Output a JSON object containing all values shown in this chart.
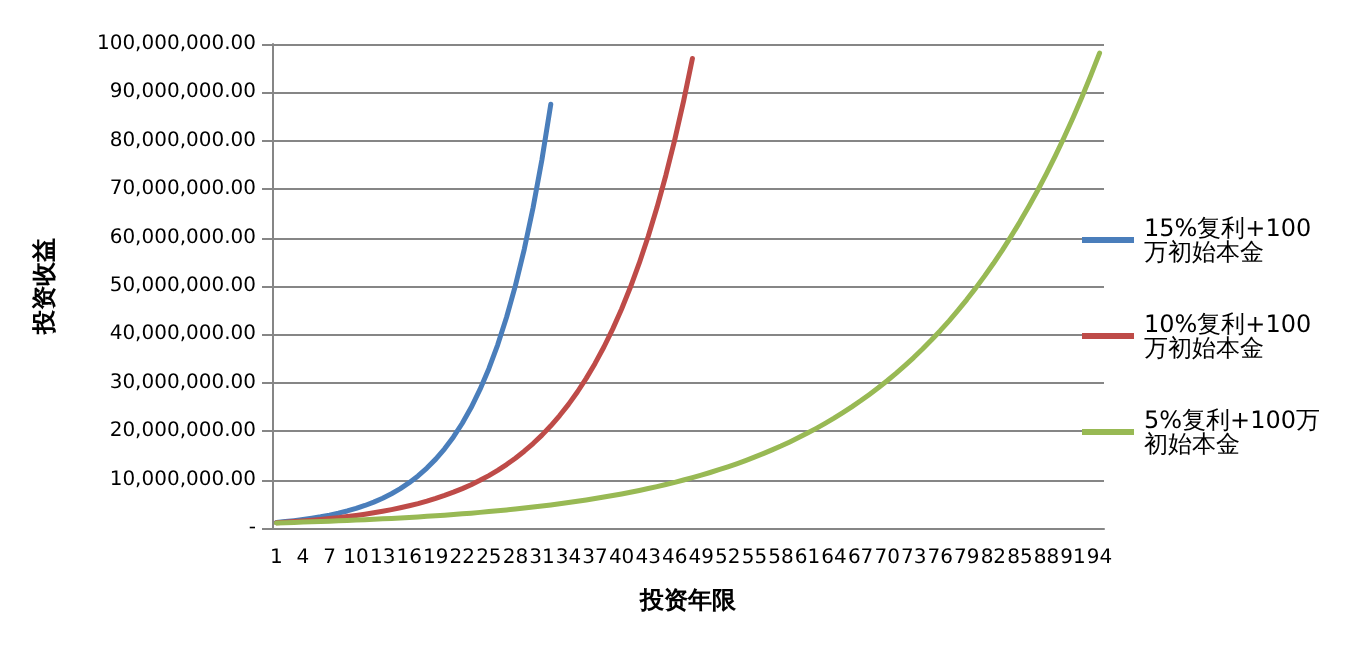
{
  "chart_data": {
    "type": "line",
    "xlabel": "投资年限",
    "ylabel": "投资收益",
    "categories": [
      "1",
      null,
      null,
      "4",
      null,
      null,
      "7",
      null,
      null,
      "10",
      null,
      null,
      "13",
      null,
      null,
      "16",
      null,
      null,
      "19",
      null,
      null,
      "22",
      null,
      null,
      "25",
      null,
      null,
      "28",
      null,
      null,
      "31",
      null,
      null,
      "34",
      null,
      null,
      "37",
      null,
      null,
      "40",
      null,
      null,
      "43",
      null,
      null,
      "46",
      null,
      null,
      "49",
      null,
      null,
      "52",
      null,
      null,
      "55",
      null,
      null,
      "58",
      null,
      null,
      "61",
      null,
      null,
      "64",
      null,
      null,
      "67",
      null,
      null,
      "70",
      null,
      null,
      "73",
      null,
      null,
      "76",
      null,
      null,
      "79",
      null,
      null,
      "82",
      null,
      null,
      "85",
      null,
      null,
      "88",
      null,
      null,
      "91",
      null,
      null,
      "94"
    ],
    "series": [
      {
        "name": "15%复利+100万初始本金",
        "color": "#4a7ebb",
        "values": [
          1150000,
          1320000,
          1520000,
          1750000,
          2010000,
          2310000,
          2660000,
          3060000,
          3520000,
          4050000,
          4650000,
          5350000,
          6150000,
          7080000,
          8140000,
          9360000,
          10760000,
          12380000,
          14230000,
          16370000,
          18820000,
          21640000,
          24890000,
          28630000,
          32920000,
          37860000,
          43540000,
          50070000,
          57580000,
          66210000,
          76140000,
          87570000,
          null,
          null,
          null,
          null,
          null,
          null,
          null,
          null,
          null,
          null,
          null,
          null,
          null,
          null,
          null,
          null,
          null,
          null,
          null,
          null,
          null,
          null,
          null,
          null,
          null,
          null,
          null,
          null,
          null,
          null,
          null,
          null,
          null,
          null,
          null,
          null,
          null,
          null,
          null,
          null,
          null,
          null,
          null,
          null,
          null,
          null,
          null,
          null,
          null,
          null,
          null,
          null,
          null,
          null,
          null,
          null,
          null,
          null,
          null,
          null,
          null,
          null
        ]
      },
      {
        "name": "10%复利+100万初始本金",
        "color": "#be4b48",
        "values": [
          1100000,
          1210000,
          1330000,
          1460000,
          1610000,
          1770000,
          1950000,
          2140000,
          2360000,
          2590000,
          2850000,
          3140000,
          3450000,
          3800000,
          4180000,
          4600000,
          5050000,
          5560000,
          6120000,
          6730000,
          7400000,
          8140000,
          8950000,
          9850000,
          10830000,
          11920000,
          13110000,
          14420000,
          15860000,
          17450000,
          19190000,
          21110000,
          23230000,
          25550000,
          28100000,
          30910000,
          34000000,
          37400000,
          41140000,
          45260000,
          49790000,
          54760000,
          60240000,
          66260000,
          72890000,
          80180000,
          88200000,
          97020000,
          null,
          null,
          null,
          null,
          null,
          null,
          null,
          null,
          null,
          null,
          null,
          null,
          null,
          null,
          null,
          null,
          null,
          null,
          null,
          null,
          null,
          null,
          null,
          null,
          null,
          null,
          null,
          null,
          null,
          null,
          null,
          null,
          null,
          null,
          null,
          null,
          null,
          null,
          null,
          null,
          null,
          null,
          null,
          null,
          null,
          null
        ]
      },
      {
        "name": "5%复利+100万初始本金",
        "color": "#98b954",
        "values": [
          1050000,
          1100000,
          1160000,
          1220000,
          1280000,
          1340000,
          1410000,
          1480000,
          1550000,
          1630000,
          1710000,
          1800000,
          1890000,
          1980000,
          2080000,
          2180000,
          2290000,
          2410000,
          2530000,
          2650000,
          2790000,
          2930000,
          3070000,
          3230000,
          3390000,
          3560000,
          3730000,
          3920000,
          4120000,
          4320000,
          4540000,
          4760000,
          5000000,
          5250000,
          5520000,
          5790000,
          6080000,
          6390000,
          6700000,
          7040000,
          7390000,
          7760000,
          8150000,
          8560000,
          8990000,
          9430000,
          9910000,
          10400000,
          10920000,
          11470000,
          12040000,
          12640000,
          13270000,
          13940000,
          14640000,
          15370000,
          16140000,
          16940000,
          17790000,
          18680000,
          19610000,
          20590000,
          21620000,
          22700000,
          23840000,
          25030000,
          26280000,
          27600000,
          28980000,
          30430000,
          31950000,
          33550000,
          35220000,
          36980000,
          38830000,
          40770000,
          42810000,
          44950000,
          47200000,
          49560000,
          52040000,
          54640000,
          57370000,
          60240000,
          63250000,
          66420000,
          69740000,
          73220000,
          76890000,
          80730000,
          84770000,
          89010000,
          93460000,
          98130000
        ]
      }
    ],
    "ylim": [
      0,
      100000000
    ],
    "yticks": [
      {
        "value": 0,
        "label": "-"
      },
      {
        "value": 10000000,
        "label": "10,000,000.00"
      },
      {
        "value": 20000000,
        "label": "20,000,000.00"
      },
      {
        "value": 30000000,
        "label": "30,000,000.00"
      },
      {
        "value": 40000000,
        "label": "40,000,000.00"
      },
      {
        "value": 50000000,
        "label": "50,000,000.00"
      },
      {
        "value": 60000000,
        "label": "60,000,000.00"
      },
      {
        "value": 70000000,
        "label": "70,000,000.00"
      },
      {
        "value": 80000000,
        "label": "80,000,000.00"
      },
      {
        "value": 90000000,
        "label": "90,000,000.00"
      },
      {
        "value": 100000000,
        "label": "100,000,000.00"
      }
    ],
    "grid": "y",
    "legend": "right",
    "marker": "none",
    "line_style": "solid"
  }
}
